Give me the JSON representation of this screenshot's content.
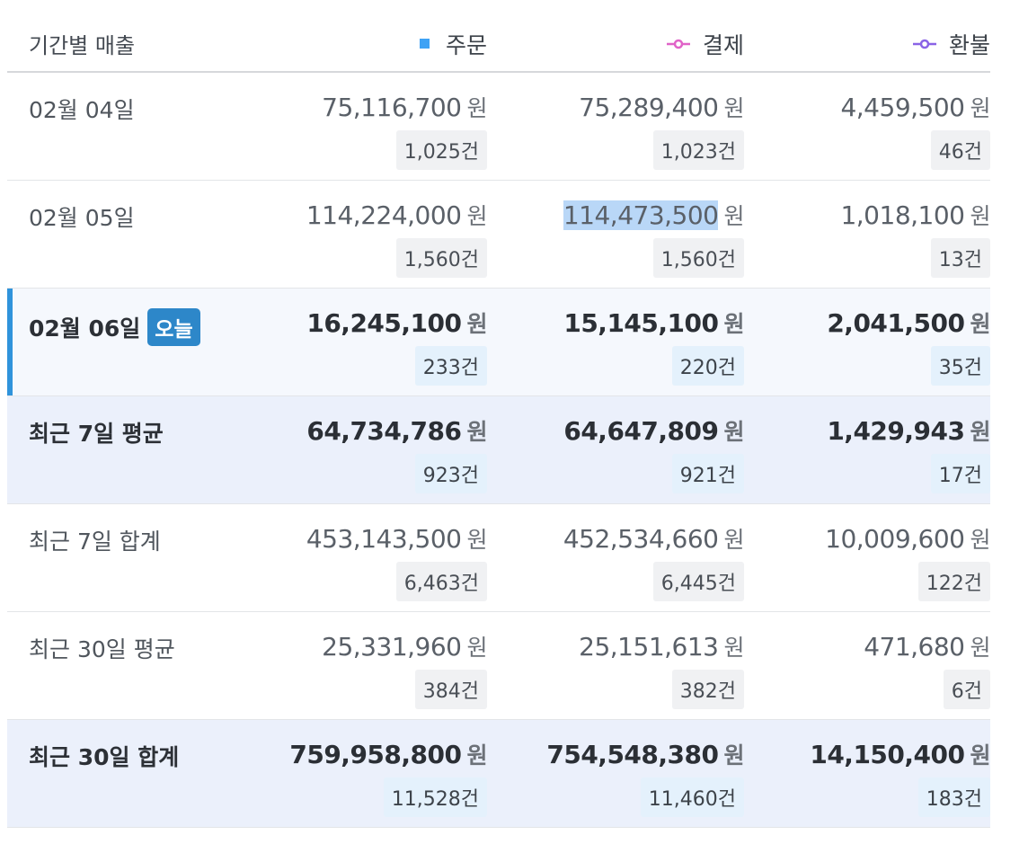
{
  "header": {
    "period_label": "기간별 매출",
    "columns": [
      {
        "label": "주문",
        "color": "#3ea2f5",
        "marker": "square-marker"
      },
      {
        "label": "결제",
        "color": "#e063c8",
        "marker": "line-dot-marker"
      },
      {
        "label": "환불",
        "color": "#8a63e6",
        "marker": "line-dot-marker"
      }
    ]
  },
  "currency_unit": "원",
  "rows": [
    {
      "label": "02월 04일",
      "cells": [
        {
          "amount": "75,116,700",
          "count": "1,025건"
        },
        {
          "amount": "75,289,400",
          "count": "1,023건"
        },
        {
          "amount": "4,459,500",
          "count": "46건"
        }
      ]
    },
    {
      "label": "02월 05일",
      "cells": [
        {
          "amount": "114,224,000",
          "count": "1,560건"
        },
        {
          "amount": "114,473,500",
          "count": "1,560건"
        },
        {
          "amount": "1,018,100",
          "count": "13건"
        }
      ]
    },
    {
      "label": "02월 06일",
      "badge": "오늘",
      "cells": [
        {
          "amount": "16,245,100",
          "count": "233건"
        },
        {
          "amount": "15,145,100",
          "count": "220건"
        },
        {
          "amount": "2,041,500",
          "count": "35건"
        }
      ]
    },
    {
      "label": "최근 7일 평균",
      "cells": [
        {
          "amount": "64,734,786",
          "count": "923건"
        },
        {
          "amount": "64,647,809",
          "count": "921건"
        },
        {
          "amount": "1,429,943",
          "count": "17건"
        }
      ]
    },
    {
      "label": "최근 7일 합계",
      "cells": [
        {
          "amount": "453,143,500",
          "count": "6,463건"
        },
        {
          "amount": "452,534,660",
          "count": "6,445건"
        },
        {
          "amount": "10,009,600",
          "count": "122건"
        }
      ]
    },
    {
      "label": "최근 30일 평균",
      "cells": [
        {
          "amount": "25,331,960",
          "count": "384건"
        },
        {
          "amount": "25,151,613",
          "count": "382건"
        },
        {
          "amount": "471,680",
          "count": "6건"
        }
      ]
    },
    {
      "label": "최근 30일 합계",
      "cells": [
        {
          "amount": "759,958,800",
          "count": "11,528건"
        },
        {
          "amount": "754,548,380",
          "count": "11,460건"
        },
        {
          "amount": "14,150,400",
          "count": "183건"
        }
      ]
    }
  ]
}
